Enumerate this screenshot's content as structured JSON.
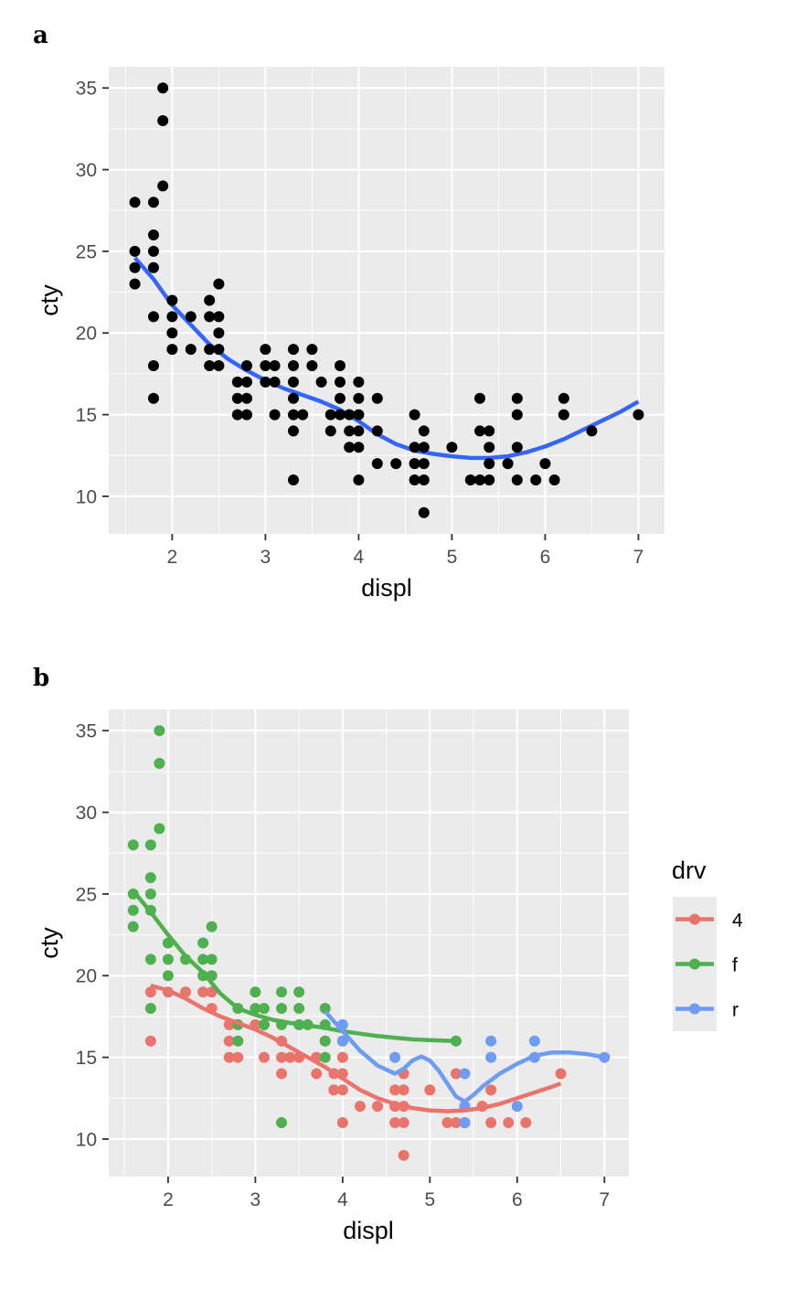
{
  "chart_data": [
    {
      "tag": "a",
      "type": "scatter",
      "xlabel": "displ",
      "ylabel": "cty",
      "xlim": [
        1.32,
        7.28
      ],
      "ylim": [
        7.7,
        36.3
      ],
      "xticks": [
        2,
        3,
        4,
        5,
        6,
        7
      ],
      "yticks": [
        10,
        15,
        20,
        25,
        30,
        35
      ],
      "grid": true,
      "colors": {
        "points": "#000000",
        "smooth": "#3366ff"
      },
      "points": [
        [
          1.6,
          28
        ],
        [
          1.6,
          25
        ],
        [
          1.6,
          24
        ],
        [
          1.6,
          23
        ],
        [
          1.8,
          28
        ],
        [
          1.8,
          26
        ],
        [
          1.8,
          25
        ],
        [
          1.8,
          24
        ],
        [
          1.8,
          21
        ],
        [
          1.8,
          18
        ],
        [
          1.8,
          16
        ],
        [
          1.9,
          35
        ],
        [
          1.9,
          33
        ],
        [
          1.9,
          29
        ],
        [
          2.0,
          22
        ],
        [
          2.0,
          21
        ],
        [
          2.0,
          20
        ],
        [
          2.0,
          19
        ],
        [
          2.2,
          21
        ],
        [
          2.2,
          19
        ],
        [
          2.4,
          22
        ],
        [
          2.4,
          21
        ],
        [
          2.4,
          19
        ],
        [
          2.4,
          18
        ],
        [
          2.5,
          23
        ],
        [
          2.5,
          21
        ],
        [
          2.5,
          20
        ],
        [
          2.5,
          19
        ],
        [
          2.5,
          18
        ],
        [
          2.7,
          17
        ],
        [
          2.7,
          16
        ],
        [
          2.7,
          15
        ],
        [
          2.8,
          18
        ],
        [
          2.8,
          17
        ],
        [
          2.8,
          16
        ],
        [
          2.8,
          15
        ],
        [
          3.0,
          19
        ],
        [
          3.0,
          18
        ],
        [
          3.0,
          17
        ],
        [
          3.1,
          18
        ],
        [
          3.1,
          17
        ],
        [
          3.1,
          15
        ],
        [
          3.3,
          19
        ],
        [
          3.3,
          18
        ],
        [
          3.3,
          17
        ],
        [
          3.3,
          16
        ],
        [
          3.3,
          15
        ],
        [
          3.3,
          14
        ],
        [
          3.3,
          11
        ],
        [
          3.4,
          15
        ],
        [
          3.5,
          19
        ],
        [
          3.5,
          18
        ],
        [
          3.6,
          17
        ],
        [
          3.7,
          15
        ],
        [
          3.7,
          14
        ],
        [
          3.8,
          18
        ],
        [
          3.8,
          17
        ],
        [
          3.8,
          16
        ],
        [
          3.8,
          15
        ],
        [
          3.9,
          15
        ],
        [
          3.9,
          14
        ],
        [
          3.9,
          13
        ],
        [
          4.0,
          17
        ],
        [
          4.0,
          16
        ],
        [
          4.0,
          15
        ],
        [
          4.0,
          14
        ],
        [
          4.0,
          13
        ],
        [
          4.0,
          11
        ],
        [
          4.2,
          16
        ],
        [
          4.2,
          14
        ],
        [
          4.2,
          12
        ],
        [
          4.4,
          12
        ],
        [
          4.6,
          15
        ],
        [
          4.6,
          13
        ],
        [
          4.6,
          12
        ],
        [
          4.6,
          11
        ],
        [
          4.7,
          14
        ],
        [
          4.7,
          13
        ],
        [
          4.7,
          12
        ],
        [
          4.7,
          11
        ],
        [
          4.7,
          9
        ],
        [
          5.0,
          13
        ],
        [
          5.2,
          11
        ],
        [
          5.3,
          16
        ],
        [
          5.3,
          14
        ],
        [
          5.3,
          11
        ],
        [
          5.4,
          14
        ],
        [
          5.4,
          13
        ],
        [
          5.4,
          12
        ],
        [
          5.4,
          11
        ],
        [
          5.6,
          12
        ],
        [
          5.7,
          16
        ],
        [
          5.7,
          15
        ],
        [
          5.7,
          13
        ],
        [
          5.7,
          11
        ],
        [
          5.9,
          11
        ],
        [
          6.0,
          12
        ],
        [
          6.1,
          11
        ],
        [
          6.2,
          16
        ],
        [
          6.2,
          15
        ],
        [
          6.5,
          14
        ],
        [
          7.0,
          15
        ]
      ],
      "smooth": [
        [
          1.6,
          24.6
        ],
        [
          1.8,
          23.3
        ],
        [
          2.0,
          21.7
        ],
        [
          2.2,
          20.5
        ],
        [
          2.4,
          19.3
        ],
        [
          2.6,
          18.4
        ],
        [
          2.8,
          17.7
        ],
        [
          3.0,
          17.1
        ],
        [
          3.2,
          16.6
        ],
        [
          3.4,
          16.2
        ],
        [
          3.6,
          15.8
        ],
        [
          3.8,
          15.3
        ],
        [
          4.0,
          14.6
        ],
        [
          4.2,
          13.8
        ],
        [
          4.4,
          13.2
        ],
        [
          4.6,
          12.8
        ],
        [
          4.8,
          12.6
        ],
        [
          5.0,
          12.45
        ],
        [
          5.2,
          12.35
        ],
        [
          5.4,
          12.35
        ],
        [
          5.6,
          12.45
        ],
        [
          5.8,
          12.7
        ],
        [
          6.0,
          13.05
        ],
        [
          6.2,
          13.5
        ],
        [
          6.4,
          14.05
        ],
        [
          6.6,
          14.6
        ],
        [
          6.8,
          15.15
        ],
        [
          7.0,
          15.8
        ]
      ]
    },
    {
      "tag": "b",
      "type": "scatter",
      "xlabel": "displ",
      "ylabel": "cty",
      "xlim": [
        1.32,
        7.28
      ],
      "ylim": [
        7.7,
        36.3
      ],
      "xticks": [
        2,
        3,
        4,
        5,
        6,
        7
      ],
      "yticks": [
        10,
        15,
        20,
        25,
        30,
        35
      ],
      "grid": true,
      "legend": {
        "title": "drv",
        "placement": "right"
      },
      "series": [
        {
          "name": "4",
          "color": "#e8746c",
          "points": [
            [
              1.8,
              16
            ],
            [
              1.8,
              19
            ],
            [
              2.0,
              19
            ],
            [
              2.2,
              19
            ],
            [
              2.4,
              19
            ],
            [
              2.5,
              19
            ],
            [
              2.5,
              18
            ],
            [
              2.7,
              17
            ],
            [
              2.7,
              16
            ],
            [
              2.7,
              15
            ],
            [
              2.8,
              15
            ],
            [
              3.0,
              17
            ],
            [
              3.1,
              17
            ],
            [
              3.1,
              15
            ],
            [
              3.3,
              16
            ],
            [
              3.3,
              15
            ],
            [
              3.3,
              14
            ],
            [
              3.4,
              15
            ],
            [
              3.5,
              15
            ],
            [
              3.7,
              15
            ],
            [
              3.7,
              14
            ],
            [
              3.8,
              16
            ],
            [
              3.9,
              14
            ],
            [
              3.9,
              13
            ],
            [
              4.0,
              16
            ],
            [
              4.0,
              15
            ],
            [
              4.0,
              14
            ],
            [
              4.0,
              13
            ],
            [
              4.0,
              11
            ],
            [
              4.2,
              12
            ],
            [
              4.4,
              12
            ],
            [
              4.6,
              13
            ],
            [
              4.6,
              12
            ],
            [
              4.6,
              11
            ],
            [
              4.7,
              14
            ],
            [
              4.7,
              13
            ],
            [
              4.7,
              12
            ],
            [
              4.7,
              11
            ],
            [
              4.7,
              9
            ],
            [
              5.0,
              13
            ],
            [
              5.2,
              11
            ],
            [
              5.3,
              14
            ],
            [
              5.3,
              11
            ],
            [
              5.4,
              12
            ],
            [
              5.4,
              11
            ],
            [
              5.6,
              12
            ],
            [
              5.7,
              13
            ],
            [
              5.7,
              11
            ],
            [
              5.9,
              11
            ],
            [
              6.1,
              11
            ],
            [
              6.5,
              14
            ]
          ],
          "smooth": [
            [
              1.8,
              19.4
            ],
            [
              2.0,
              19.1
            ],
            [
              2.2,
              18.6
            ],
            [
              2.4,
              18.0
            ],
            [
              2.6,
              17.5
            ],
            [
              2.8,
              17.1
            ],
            [
              3.0,
              16.7
            ],
            [
              3.2,
              16.2
            ],
            [
              3.4,
              15.6
            ],
            [
              3.6,
              15.0
            ],
            [
              3.8,
              14.4
            ],
            [
              4.0,
              13.7
            ],
            [
              4.2,
              13.0
            ],
            [
              4.4,
              12.5
            ],
            [
              4.6,
              12.15
            ],
            [
              4.8,
              11.9
            ],
            [
              5.0,
              11.75
            ],
            [
              5.2,
              11.7
            ],
            [
              5.4,
              11.75
            ],
            [
              5.6,
              11.9
            ],
            [
              5.8,
              12.15
            ],
            [
              6.0,
              12.5
            ],
            [
              6.2,
              12.85
            ],
            [
              6.4,
              13.2
            ],
            [
              6.5,
              13.4
            ]
          ]
        },
        {
          "name": "f",
          "color": "#4eb04e",
          "points": [
            [
              1.6,
              28
            ],
            [
              1.6,
              25
            ],
            [
              1.6,
              24
            ],
            [
              1.6,
              23
            ],
            [
              1.8,
              28
            ],
            [
              1.8,
              26
            ],
            [
              1.8,
              25
            ],
            [
              1.8,
              24
            ],
            [
              1.8,
              21
            ],
            [
              1.8,
              18
            ],
            [
              1.9,
              35
            ],
            [
              1.9,
              33
            ],
            [
              1.9,
              29
            ],
            [
              2.0,
              22
            ],
            [
              2.0,
              21
            ],
            [
              2.0,
              20
            ],
            [
              2.2,
              21
            ],
            [
              2.4,
              22
            ],
            [
              2.4,
              21
            ],
            [
              2.4,
              20
            ],
            [
              2.5,
              23
            ],
            [
              2.5,
              21
            ],
            [
              2.5,
              20
            ],
            [
              2.8,
              18
            ],
            [
              2.8,
              17
            ],
            [
              2.8,
              16
            ],
            [
              3.0,
              19
            ],
            [
              3.0,
              18
            ],
            [
              3.1,
              18
            ],
            [
              3.1,
              17
            ],
            [
              3.3,
              19
            ],
            [
              3.3,
              18
            ],
            [
              3.3,
              17
            ],
            [
              3.3,
              11
            ],
            [
              3.5,
              19
            ],
            [
              3.5,
              18
            ],
            [
              3.5,
              17
            ],
            [
              3.6,
              17
            ],
            [
              3.8,
              18
            ],
            [
              3.8,
              17
            ],
            [
              3.8,
              16
            ],
            [
              3.8,
              15
            ],
            [
              5.3,
              16
            ]
          ],
          "smooth": [
            [
              1.6,
              25.2
            ],
            [
              1.8,
              23.9
            ],
            [
              2.0,
              22.5
            ],
            [
              2.2,
              21.2
            ],
            [
              2.4,
              20.2
            ],
            [
              2.6,
              18.9
            ],
            [
              2.8,
              18.0
            ],
            [
              3.0,
              17.6
            ],
            [
              3.2,
              17.3
            ],
            [
              3.4,
              17.1
            ],
            [
              3.6,
              16.95
            ],
            [
              3.8,
              16.8
            ],
            [
              4.0,
              16.6
            ],
            [
              4.2,
              16.45
            ],
            [
              4.4,
              16.3
            ],
            [
              4.6,
              16.2
            ],
            [
              4.8,
              16.1
            ],
            [
              5.0,
              16.05
            ],
            [
              5.3,
              16.0
            ]
          ]
        },
        {
          "name": "r",
          "color": "#6d9cf2",
          "points": [
            [
              4.0,
              17
            ],
            [
              4.0,
              16
            ],
            [
              4.6,
              15
            ],
            [
              5.4,
              14
            ],
            [
              5.4,
              12
            ],
            [
              5.4,
              11
            ],
            [
              5.7,
              16
            ],
            [
              5.7,
              15
            ],
            [
              6.0,
              12
            ],
            [
              6.2,
              16
            ],
            [
              6.2,
              15
            ],
            [
              7.0,
              15
            ]
          ],
          "smooth": [
            [
              3.8,
              17.8
            ],
            [
              4.0,
              16.6
            ],
            [
              4.2,
              15.4
            ],
            [
              4.4,
              14.5
            ],
            [
              4.6,
              14.0
            ],
            [
              4.7,
              14.3
            ],
            [
              4.8,
              14.8
            ],
            [
              4.9,
              15.05
            ],
            [
              5.0,
              14.8
            ],
            [
              5.1,
              14.2
            ],
            [
              5.2,
              13.4
            ],
            [
              5.3,
              12.6
            ],
            [
              5.4,
              12.3
            ],
            [
              5.5,
              12.7
            ],
            [
              5.6,
              13.2
            ],
            [
              5.8,
              14.0
            ],
            [
              6.0,
              14.6
            ],
            [
              6.2,
              15.1
            ],
            [
              6.4,
              15.3
            ],
            [
              6.6,
              15.3
            ],
            [
              6.8,
              15.2
            ],
            [
              7.0,
              15.0
            ]
          ]
        }
      ]
    }
  ]
}
